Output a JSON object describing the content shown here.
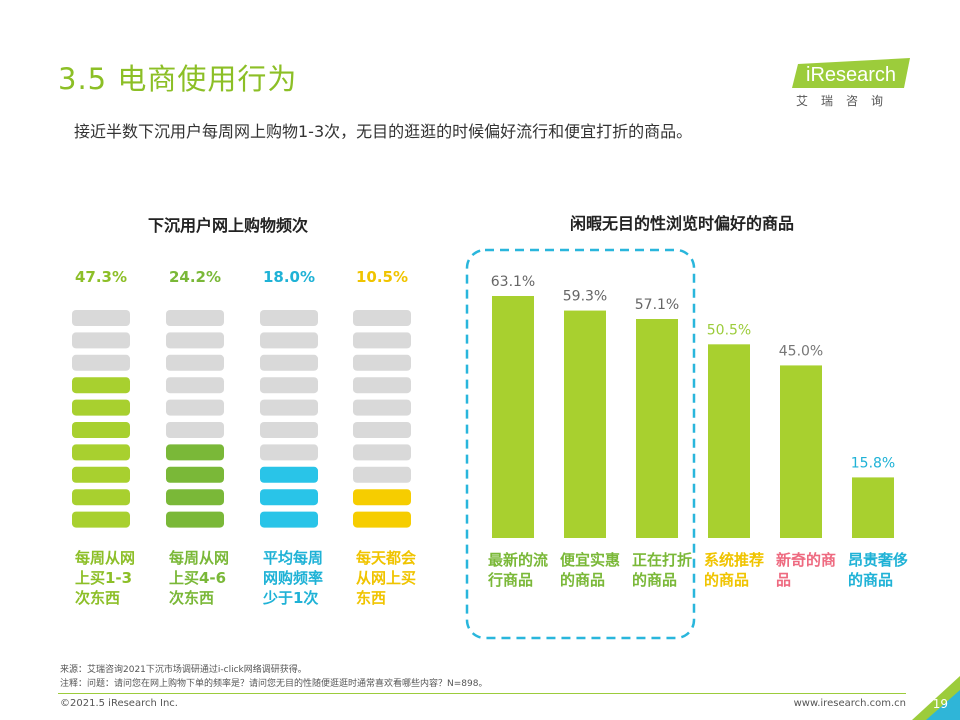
{
  "header": {
    "title": "3.5 电商使用行为",
    "subtitle": "接近半数下沉用户每周网上购物1-3次，无目的逛逛的时候偏好流行和便宜打折的商品。",
    "logo_text": "iResearch",
    "logo_sub": "艾瑞咨询"
  },
  "chart_data": [
    {
      "type": "bar",
      "title": "下沉用户网上购物频次",
      "categories": [
        "每周从网上买1-3次东西",
        "每周从网上买4-6次东西",
        "平均每周网购频率少于1次",
        "每天都会从网上买东西"
      ],
      "values": [
        47.3,
        24.2,
        18.0,
        10.5
      ],
      "value_labels": [
        "47.3%",
        "24.2%",
        "18.0%",
        "10.5%"
      ],
      "filled_segments": [
        7,
        4,
        3,
        2
      ],
      "total_segments": 10,
      "colors": [
        "#a8d02f",
        "#7ab838",
        "#29c4e8",
        "#f6cd00"
      ],
      "label_colors": [
        "#8dbf28",
        "#7ab838",
        "#1fb2d6",
        "#f0c400"
      ]
    },
    {
      "type": "bar",
      "title": "闲暇无目的性浏览时偏好的商品",
      "categories": [
        "最新的流行商品",
        "便宜实惠的商品",
        "正在打折的商品",
        "系统推荐的商品",
        "新奇的商品",
        "昂贵奢侈的商品"
      ],
      "values": [
        63.1,
        59.3,
        57.1,
        50.5,
        45.0,
        15.8
      ],
      "value_labels": [
        "63.1%",
        "59.3%",
        "57.1%",
        "50.5%",
        "45.0%",
        "15.8%"
      ],
      "ylim": [
        0,
        80
      ],
      "bar_color": "#a8d02f",
      "category_colors": [
        "#7ab838",
        "#7ab838",
        "#7ab838",
        "#f0c400",
        "#ee6a80",
        "#1fb2d6"
      ],
      "value_label_colors": [
        "#666666",
        "#666666",
        "#666666",
        "#9ccc3b",
        "#777777",
        "#1fb2d6"
      ],
      "highlight_color": "#29b6dc"
    }
  ],
  "footer": {
    "source": "来源：艾瑞咨询2021下沉市场调研通过i-click网络调研获得。",
    "note": "注释：问题：请问您在网上购物下单的频率是？请问您无目的性随便逛逛时通常喜欢看哪些内容？N=898。",
    "copyright": "©2021.5 iResearch Inc.",
    "website": "www.iresearch.com.cn",
    "page": "19"
  }
}
